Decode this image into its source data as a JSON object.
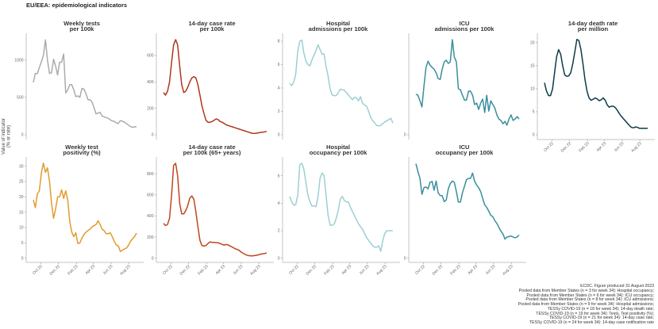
{
  "title": "EU/EEA: epidemiological indicators",
  "y_axis_label": [
    "Value of indicator",
    "(% or rate)"
  ],
  "x_range": [
    "2022-09-05",
    "2023-08-28"
  ],
  "x_frequency": "weekly",
  "x_ticks": [
    {
      "date": "2022-10-01",
      "label": "Oct 22"
    },
    {
      "date": "2022-12-01",
      "label": "Dec 22"
    },
    {
      "date": "2023-02-01",
      "label": "Feb 23"
    },
    {
      "date": "2023-04-01",
      "label": "Apr 23"
    },
    {
      "date": "2023-06-01",
      "label": "Jun 23"
    },
    {
      "date": "2023-08-01",
      "label": "Aug 23"
    }
  ],
  "caption": [
    "ECDC. Figure produced 31 August 2023",
    "Pooled data from Member States (n = 3 for week 34): Hospital occupancy;",
    "Pooled data from Member States (n = 6 for week 34): ICU occupancy;",
    "Pooled data from Member States (n = 8 for week 34): ICU admissions;",
    "Pooled data from Member States (n = 9 for week 34): Hospital admissions;",
    "TESSy COVID-19 (n = 18 for week 34): 14-day death rate;",
    "TESSy COVID-19 (n = 19 for week 34): Tests, Test positivity (%);",
    "TESSy COVID-19 (n = 21 for week 34): 14-day case rate;",
    "TESSy COVID-19 (n = 24 for week 34): 14-day case notification rate"
  ],
  "chart_data": [
    {
      "type": "line",
      "title": [
        "Weekly tests",
        "per 100k"
      ],
      "color": "#ababab",
      "ylim": [
        0,
        1336
      ],
      "yticks": [
        0,
        500,
        1000
      ],
      "show_x_ticks": false,
      "values": [
        700,
        820,
        820,
        900,
        980,
        1060,
        1270,
        1000,
        820,
        830,
        1010,
        920,
        800,
        970,
        970,
        1080,
        560,
        600,
        670,
        670,
        600,
        510,
        520,
        500,
        620,
        610,
        550,
        470,
        470,
        440,
        360,
        280,
        290,
        300,
        250,
        240,
        230,
        220,
        200,
        185,
        180,
        160,
        150,
        190,
        180,
        170,
        150,
        130,
        110,
        100,
        105,
        110
      ]
    },
    {
      "type": "line",
      "title": [
        "14-day case rate",
        "per 100k"
      ],
      "color": "#b0361c",
      "ylim": [
        0,
        756
      ],
      "yticks": [
        0,
        200,
        400,
        600
      ],
      "show_x_ticks": false,
      "values": [
        320,
        300,
        330,
        400,
        550,
        680,
        720,
        680,
        520,
        380,
        320,
        330,
        360,
        400,
        430,
        440,
        430,
        380,
        300,
        220,
        160,
        110,
        95,
        95,
        100,
        110,
        120,
        115,
        100,
        95,
        85,
        75,
        70,
        65,
        60,
        55,
        50,
        45,
        40,
        35,
        30,
        25,
        20,
        15,
        10,
        10,
        12,
        15,
        18,
        20,
        22,
        25
      ]
    },
    {
      "type": "line",
      "title": [
        "Hospital",
        "admissions per 100k"
      ],
      "color": "#9dcfd3",
      "ylim": [
        0,
        8.54
      ],
      "yticks": [
        0,
        2,
        4,
        6,
        8
      ],
      "show_x_ticks": false,
      "values": [
        4.4,
        4.2,
        4.5,
        5.2,
        7.2,
        8.0,
        8.1,
        7.0,
        6.3,
        6.0,
        5.9,
        6.4,
        6.8,
        7.2,
        7.7,
        7.3,
        6.9,
        6.9,
        5.8,
        5.0,
        3.9,
        3.4,
        3.35,
        3.35,
        3.6,
        3.9,
        3.85,
        3.8,
        3.6,
        3.4,
        3.2,
        3.0,
        3.2,
        3.15,
        2.9,
        3.25,
        2.7,
        2.55,
        2.45,
        2.0,
        1.5,
        1.2,
        1.0,
        0.8,
        0.75,
        0.8,
        0.95,
        1.1,
        1.2,
        1.3,
        1.4,
        1.0
      ]
    },
    {
      "type": "line",
      "title": [
        "ICU",
        "admissions per 100k"
      ],
      "color": "#3a8e9c",
      "ylim": [
        0,
        0.417
      ],
      "yticks": [
        0
      ],
      "show_x_ticks": false,
      "values": [
        0.169,
        0.165,
        0.142,
        0.116,
        0.205,
        0.281,
        0.307,
        0.291,
        0.281,
        0.274,
        0.258,
        0.235,
        0.231,
        0.274,
        0.304,
        0.311,
        0.298,
        0.304,
        0.397,
        0.324,
        0.304,
        0.192,
        0.188,
        0.165,
        0.145,
        0.145,
        0.182,
        0.182,
        0.165,
        0.126,
        0.132,
        0.106,
        0.132,
        0.149,
        0.093,
        0.165,
        0.099,
        0.142,
        0.126,
        0.112,
        0.083,
        0.066,
        0.06,
        0.046,
        0.056,
        0.04,
        0.066,
        0.083,
        0.06,
        0.066,
        0.076,
        0.066
      ]
    },
    {
      "type": "line",
      "title": [
        "14-day death rate",
        "per million"
      ],
      "color": "#0b3b48",
      "ylim": [
        0,
        21.7
      ],
      "yticks": [
        0,
        5,
        10,
        15,
        20
      ],
      "show_x_ticks": true,
      "values": [
        11.3,
        9.5,
        8.5,
        8.5,
        10,
        13.5,
        17,
        18.5,
        17.5,
        15,
        13,
        12.7,
        12.8,
        13.5,
        15.5,
        18,
        20.7,
        20.5,
        18.5,
        15.5,
        12,
        9.5,
        8,
        7.5,
        7.7,
        8,
        7.8,
        7.4,
        7.6,
        8,
        7.5,
        6.5,
        6,
        6.2,
        6.2,
        5.9,
        5.3,
        4.6,
        4,
        3.5,
        3,
        2.5,
        2,
        1.6,
        1.5,
        1.7,
        1.6,
        1.4,
        1.4,
        1.4,
        1.4,
        1.4
      ]
    },
    {
      "type": "line",
      "title": [
        "Weekly test",
        "positivity (%)"
      ],
      "color": "#e09c2e",
      "ylim": [
        0,
        32.5
      ],
      "yticks": [
        0,
        5,
        10,
        15,
        20,
        25,
        30
      ],
      "show_x_ticks": true,
      "values": [
        19,
        16.5,
        21,
        22,
        28,
        31,
        28,
        29.5,
        25,
        18,
        13,
        16,
        20,
        20,
        22.3,
        19.5,
        22,
        19,
        12,
        8.5,
        7,
        8.3,
        4.8,
        5,
        6.5,
        7.7,
        8.5,
        9,
        9.5,
        10.2,
        10.6,
        11,
        12.2,
        11,
        9.5,
        9,
        8,
        8,
        8.3,
        7,
        5.5,
        4.3,
        4,
        2.2,
        2.6,
        3,
        3.3,
        4.2,
        5.5,
        6.3,
        7,
        8.2
      ]
    },
    {
      "type": "line",
      "title": [
        "14-day case rate",
        "per 100k (65+ years)"
      ],
      "color": "#bf461e",
      "ylim": [
        0,
        945
      ],
      "yticks": [
        0,
        200,
        400,
        600,
        800
      ],
      "show_x_ticks": true,
      "values": [
        330,
        310,
        320,
        380,
        600,
        880,
        900,
        780,
        520,
        420,
        420,
        450,
        500,
        570,
        590,
        560,
        440,
        300,
        170,
        120,
        115,
        120,
        140,
        155,
        150,
        150,
        148,
        145,
        140,
        130,
        125,
        130,
        125,
        115,
        105,
        95,
        85,
        80,
        65,
        50,
        40,
        30,
        25,
        22,
        22,
        25,
        28,
        32,
        38,
        42,
        45,
        50
      ]
    },
    {
      "type": "line",
      "title": [
        "Hospital",
        "occupancy per 100k"
      ],
      "color": "#9dcfd3",
      "ylim": [
        0,
        7.25
      ],
      "yticks": [
        0,
        2,
        4,
        6
      ],
      "show_x_ticks": true,
      "values": [
        4.5,
        4.1,
        3.85,
        3.9,
        4.6,
        6.8,
        6.9,
        6.5,
        5.5,
        4.6,
        4.1,
        3.8,
        3.8,
        3.75,
        4.5,
        5.8,
        6.2,
        6.0,
        4.5,
        3.1,
        2.4,
        2.4,
        2.5,
        2.9,
        3.5,
        4.3,
        4.5,
        4.2,
        4.1,
        4.1,
        3.7,
        3.4,
        3.1,
        2.8,
        2.5,
        2.3,
        2.1,
        1.8,
        1.5,
        1.3,
        1.1,
        0.9,
        0.8,
        0.8,
        0.9,
        0.5,
        1.3,
        1.8,
        2.0,
        2.0,
        2.0,
        2.0
      ]
    },
    {
      "type": "line",
      "title": [
        "ICU",
        "occupancy per 100k"
      ],
      "color": "#3a8e9c",
      "ylim": [
        0,
        0.7
      ],
      "yticks": [
        0
      ],
      "show_x_ticks": true,
      "values": [
        0.663,
        0.61,
        0.561,
        0.449,
        0.496,
        0.5,
        0.487,
        0.533,
        0.539,
        0.477,
        0.542,
        0.459,
        0.44,
        0.44,
        0.397,
        0.409,
        0.487,
        0.524,
        0.542,
        0.533,
        0.468,
        0.394,
        0.394,
        0.459,
        0.505,
        0.552,
        0.561,
        0.561,
        0.598,
        0.542,
        0.514,
        0.496,
        0.468,
        0.42,
        0.375,
        0.357,
        0.33,
        0.301,
        0.292,
        0.264,
        0.245,
        0.217,
        0.19,
        0.171,
        0.134,
        0.149,
        0.152,
        0.156,
        0.149,
        0.143,
        0.15,
        0.162
      ]
    }
  ]
}
